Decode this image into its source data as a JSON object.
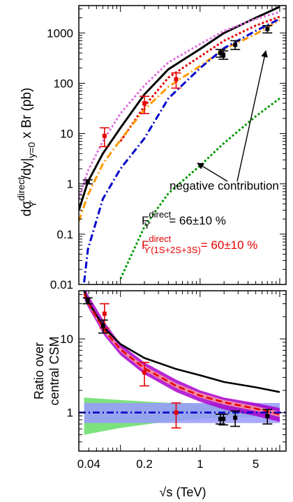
{
  "chart_data": [
    {
      "type": "line",
      "panel": "top",
      "x_scale": "log",
      "y_scale": "log",
      "xlim_TeV": [
        0.03,
        12
      ],
      "ylim_pb": [
        0.01,
        3500
      ],
      "ylabel_main": "dσ",
      "ylabel_sup": "direct",
      "ylabel_sub": "ϒ",
      "ylabel_rest": "/dy|",
      "ylabel_sub2": "y=0",
      "ylabel_tail": " x Br (pb)",
      "y_ticks": [
        {
          "v": 0.01,
          "label": "0.01"
        },
        {
          "v": 0.1,
          "label": "0.1"
        },
        {
          "v": 1,
          "label": "1"
        },
        {
          "v": 10,
          "label": "10"
        },
        {
          "v": 100,
          "label": "100"
        },
        {
          "v": 1000,
          "label": "1000"
        }
      ],
      "series": [
        {
          "style": "solid",
          "color": "#000000",
          "x": [
            0.03,
            0.039,
            0.06,
            0.1,
            0.2,
            0.4,
            1,
            2,
            5,
            10
          ],
          "y": [
            0.3,
            1.1,
            4,
            13,
            60,
            190,
            480,
            1000,
            2000,
            3300
          ]
        },
        {
          "style": "dotted",
          "color": "#e60000",
          "x": [
            0.1,
            0.2,
            0.4,
            1,
            2,
            5,
            10
          ],
          "y": [
            7,
            35,
            130,
            340,
            700,
            1400,
            2100
          ]
        },
        {
          "style": "dotted",
          "color": "#e070e0",
          "x": [
            0.03,
            0.039,
            0.06,
            0.1,
            0.2,
            0.4,
            1,
            2,
            5,
            10
          ],
          "y": [
            0.5,
            1.8,
            7,
            25,
            90,
            260,
            600,
            1100,
            1900,
            2600
          ]
        },
        {
          "style": "dashdot",
          "color": "#ff9900",
          "x": [
            0.03,
            0.039,
            0.06,
            0.1,
            0.2,
            0.4,
            1,
            2,
            5,
            10
          ],
          "y": [
            0.18,
            0.6,
            2.5,
            7.5,
            30,
            85,
            220,
            480,
            950,
            1800
          ]
        },
        {
          "style": "dashdot",
          "color": "#0000cc",
          "x": [
            0.035,
            0.039,
            0.06,
            0.1,
            0.2,
            0.4,
            1,
            2,
            5,
            10
          ],
          "y": [
            0.011,
            0.05,
            0.5,
            2,
            8,
            50,
            200,
            500,
            1100,
            1900
          ]
        },
        {
          "style": "dotted",
          "color": "#009900",
          "x": [
            0.1,
            0.2,
            0.4,
            1,
            2,
            5,
            10
          ],
          "y": [
            0.013,
            0.14,
            0.65,
            2.3,
            6.5,
            22,
            50
          ]
        }
      ],
      "points": [
        {
          "x": 0.0388,
          "y": 1.1,
          "lo": 1.0,
          "hi": 1.2,
          "color": "#000000",
          "marker": "square"
        },
        {
          "x": 0.063,
          "y": 9,
          "lo": 5.5,
          "hi": 13,
          "color": "#e60000",
          "marker": "square"
        },
        {
          "x": 0.2,
          "y": 40,
          "lo": 25,
          "hi": 55,
          "color": "#e60000",
          "marker": "square"
        },
        {
          "x": 0.5,
          "y": 120,
          "lo": 80,
          "hi": 160,
          "color": "#e60000",
          "marker": "square"
        },
        {
          "x": 1.8,
          "y": 400,
          "lo": 330,
          "hi": 470,
          "color": "#000000",
          "marker": "square"
        },
        {
          "x": 1.96,
          "y": 370,
          "lo": 300,
          "hi": 440,
          "color": "#000000",
          "marker": "square"
        },
        {
          "x": 2.76,
          "y": 580,
          "lo": 470,
          "hi": 700,
          "color": "#000000",
          "marker": "square"
        },
        {
          "x": 7,
          "y": 1200,
          "lo": 1000,
          "hi": 1400,
          "color": "#000000",
          "marker": "square"
        }
      ],
      "annotations": {
        "negative": "negative contribution",
        "f1_main": "F",
        "f1_sup": "direct",
        "f1_sub": "ϒ",
        "f1_val": "= 66±10 %",
        "f2_main": "F",
        "f2_sup": "direct",
        "f2_sub": "ϒ(1S+2S+3S)",
        "f2_val": "= 60±10 %"
      }
    },
    {
      "type": "line",
      "panel": "bottom",
      "x_scale": "log",
      "y_scale": "log",
      "xlim_TeV": [
        0.03,
        12
      ],
      "ylim": [
        0.3,
        45
      ],
      "ylabel_line1": "Ratio over",
      "ylabel_line2": "central CSM",
      "xlabel_sym": "√s",
      "xlabel_rest": " (TeV)",
      "x_ticks": [
        {
          "v": 0.04,
          "label": "0.04"
        },
        {
          "v": 0.2,
          "label": "0.2"
        },
        {
          "v": 1,
          "label": "1"
        },
        {
          "v": 5,
          "label": "5"
        }
      ],
      "y_ticks": [
        {
          "v": 1,
          "label": "1"
        },
        {
          "v": 10,
          "label": "10"
        }
      ],
      "bands": [
        {
          "color": "#66dd66",
          "x": [
            0.035,
            0.1,
            0.3,
            1,
            3,
            10
          ],
          "lo": [
            0.5,
            0.62,
            0.73,
            0.82,
            0.86,
            0.88
          ],
          "hi": [
            1.6,
            1.48,
            1.38,
            1.3,
            1.25,
            1.22
          ]
        },
        {
          "color": "#9999ff",
          "x": [
            0.035,
            10
          ],
          "lo": [
            0.72,
            0.72
          ],
          "hi": [
            1.35,
            1.35
          ]
        },
        {
          "color": "#aa00cc",
          "x": [
            0.035,
            0.039,
            0.063,
            0.1,
            0.2,
            0.5,
            1,
            2,
            5,
            10
          ],
          "lo": [
            35,
            27,
            11,
            6,
            3.3,
            1.9,
            1.4,
            1.1,
            0.9,
            0.75
          ],
          "hi": [
            55,
            40,
            17,
            8.5,
            4.8,
            2.8,
            2.0,
            1.6,
            1.35,
            1.15
          ]
        },
        {
          "color": "#ff9999",
          "x": [
            0.035,
            0.039,
            0.063,
            0.1,
            0.2,
            0.5,
            1,
            2,
            5,
            10
          ],
          "lo": [
            38,
            29,
            12,
            6.7,
            3.7,
            2.15,
            1.6,
            1.28,
            1.05,
            0.87
          ],
          "hi": [
            45,
            34,
            14,
            7.6,
            4.3,
            2.5,
            1.85,
            1.48,
            1.22,
            1.03
          ]
        }
      ],
      "series": [
        {
          "style": "solid",
          "color": "#000000",
          "x": [
            0.035,
            0.039,
            0.063,
            0.1,
            0.2,
            0.5,
            1,
            2,
            5,
            10
          ],
          "y": [
            45,
            32,
            14,
            8.5,
            5.5,
            3.9,
            3.2,
            2.6,
            2.2,
            1.9
          ]
        },
        {
          "style": "dashed",
          "color": "#e60000",
          "x": [
            0.035,
            0.039,
            0.063,
            0.1,
            0.2,
            0.5,
            1,
            2,
            5,
            10
          ],
          "y": [
            41,
            31,
            13,
            7.2,
            4,
            2.3,
            1.7,
            1.38,
            1.13,
            0.95
          ]
        },
        {
          "style": "dashdot",
          "color": "#0000cc",
          "x": [
            0.03,
            12
          ],
          "y": [
            1,
            1
          ]
        }
      ],
      "points": [
        {
          "x": 0.0388,
          "y": 33,
          "lo": 30,
          "hi": 36,
          "color": "#000000",
          "marker": "square"
        },
        {
          "x": 0.063,
          "y": 22,
          "lo": 14,
          "hi": 30,
          "color": "#e60000",
          "marker": "square"
        },
        {
          "x": 0.0605,
          "y": 15,
          "lo": 12,
          "hi": 18,
          "color": "#000000",
          "marker": "square"
        },
        {
          "x": 0.2,
          "y": 3.5,
          "lo": 2.3,
          "hi": 4.8,
          "color": "#e60000",
          "marker": "square"
        },
        {
          "x": 0.5,
          "y": 1.0,
          "lo": 0.62,
          "hi": 1.35,
          "color": "#e60000",
          "marker": "square"
        },
        {
          "x": 1.8,
          "y": 0.82,
          "lo": 0.7,
          "hi": 0.95,
          "color": "#000000",
          "marker": "square"
        },
        {
          "x": 1.96,
          "y": 0.82,
          "lo": 0.68,
          "hi": 0.95,
          "color": "#000000",
          "marker": "square"
        },
        {
          "x": 2.76,
          "y": 0.85,
          "lo": 0.65,
          "hi": 1.05,
          "color": "#000000",
          "marker": "square"
        },
        {
          "x": 7,
          "y": 0.9,
          "lo": 0.7,
          "hi": 1.1,
          "color": "#000000",
          "marker": "square"
        }
      ]
    }
  ]
}
